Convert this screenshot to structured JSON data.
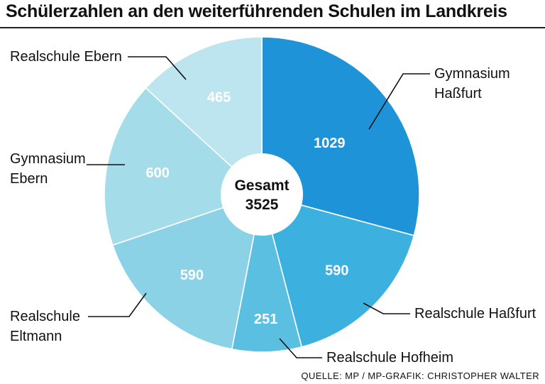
{
  "title": "Schülerzahlen an den weiterführenden Schulen im Landkreis",
  "source": "QUELLE: MP / MP-GRAFIK: CHRISTOPHER WALTER",
  "chart_data": {
    "type": "pie",
    "title": "Schülerzahlen an den weiterführenden Schulen im Landkreis",
    "center_label": [
      "Gesamt",
      "3525"
    ],
    "slices": [
      {
        "label": [
          "Gymnasium",
          "Haßfurt"
        ],
        "value": 1029,
        "color": "#1e93d8"
      },
      {
        "label": [
          "Realschule Haßfurt"
        ],
        "value": 590,
        "color": "#3cb0df"
      },
      {
        "label": [
          "Realschule Hofheim"
        ],
        "value": 251,
        "color": "#5bbfe2"
      },
      {
        "label": [
          "Realschule",
          "Eltmann"
        ],
        "value": 590,
        "color": "#8bd2e7"
      },
      {
        "label": [
          "Gymnasium",
          "Ebern"
        ],
        "value": 600,
        "color": "#a4dde9"
      },
      {
        "label": [
          "Realschule Ebern"
        ],
        "value": 465,
        "color": "#bce5ef"
      }
    ],
    "total": 3525
  }
}
